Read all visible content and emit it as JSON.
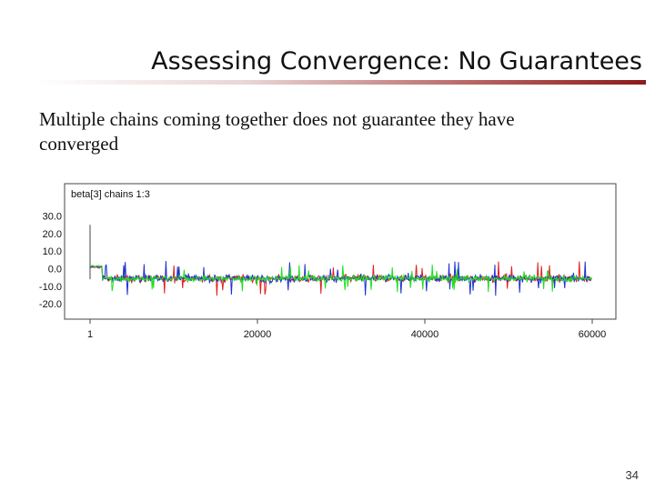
{
  "slide": {
    "title": "Assessing Convergence: No Guarantees",
    "body_line1": "Multiple chains coming together does not guarantee they have",
    "body_line2": "converged",
    "page_number": "34"
  },
  "colors": {
    "title_rule_end": "#8c1a1a",
    "chain1": "#e02020",
    "chain2": "#2030d0",
    "chain3": "#20e020",
    "frame": "#444444"
  },
  "chart_data": {
    "type": "line",
    "title": "beta[3] chains 1:3",
    "xlabel": "",
    "ylabel": "",
    "x_ticks": [
      "1",
      "20000",
      "40000",
      "60000"
    ],
    "x_tick_values": [
      1,
      20000,
      40000,
      60000
    ],
    "y_ticks": [
      "30.0",
      "20.0",
      "10.0",
      "0.0",
      "-10.0",
      "-20.0"
    ],
    "y_tick_values": [
      30,
      20,
      10,
      0,
      -10,
      -20
    ],
    "xlim": [
      1,
      60000
    ],
    "ylim": [
      -22,
      35
    ],
    "grid": false,
    "series": [
      {
        "color": "#e02020",
        "burn_in_level": 0.8,
        "mean": -5.5,
        "spread": 5
      },
      {
        "color": "#2030d0",
        "burn_in_level": 1.0,
        "mean": -5.5,
        "spread": 5
      },
      {
        "color": "#20e020",
        "burn_in_level": 1.5,
        "mean": -5.5,
        "spread": 4
      }
    ],
    "initial_spike": {
      "x": 1,
      "y_max": 25,
      "y_min": -6
    },
    "burn_in_end": 1500
  }
}
